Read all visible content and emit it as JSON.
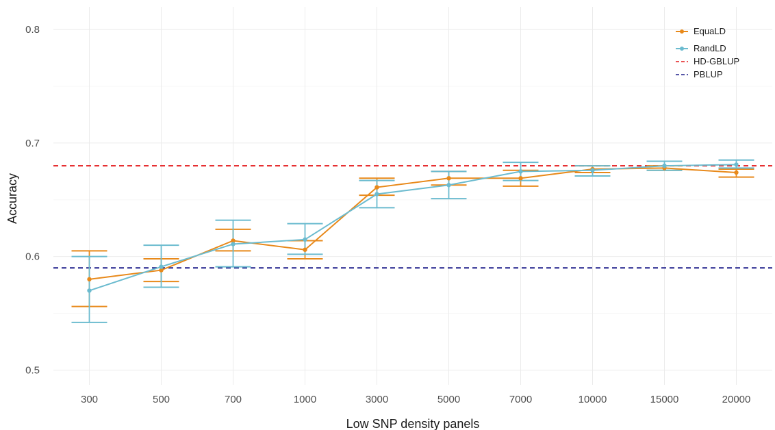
{
  "chart_data": {
    "type": "line",
    "xlabel": "Low SNP density panels",
    "ylabel": "Accuracy",
    "categories": [
      "300",
      "500",
      "700",
      "1000",
      "3000",
      "5000",
      "7000",
      "10000",
      "15000",
      "20000"
    ],
    "ylim": [
      0.487,
      0.82
    ],
    "yticks": [
      0.5,
      0.6,
      0.7,
      0.8
    ],
    "grid": true,
    "legend_position": "top-right",
    "series": [
      {
        "name": "EquaLD",
        "color": "#e8891a",
        "values": [
          0.58,
          0.588,
          0.614,
          0.606,
          0.661,
          0.669,
          0.669,
          0.677,
          0.678,
          0.674
        ],
        "lower": [
          0.556,
          0.578,
          0.605,
          0.598,
          0.654,
          0.663,
          0.662,
          0.674,
          0.676,
          0.67
        ],
        "upper": [
          0.605,
          0.598,
          0.624,
          0.614,
          0.669,
          0.675,
          0.676,
          0.68,
          0.68,
          0.677
        ]
      },
      {
        "name": "RandLD",
        "color": "#6bbbcf",
        "values": [
          0.57,
          0.591,
          0.611,
          0.615,
          0.655,
          0.663,
          0.675,
          0.676,
          0.68,
          0.681
        ],
        "lower": [
          0.542,
          0.573,
          0.591,
          0.602,
          0.643,
          0.651,
          0.667,
          0.671,
          0.676,
          0.678
        ],
        "upper": [
          0.6,
          0.61,
          0.632,
          0.629,
          0.667,
          0.675,
          0.683,
          0.68,
          0.684,
          0.685
        ]
      }
    ],
    "reference_lines": [
      {
        "name": "HD-GBLUP",
        "value": 0.68,
        "color": "#e41a1c",
        "dash": true
      },
      {
        "name": "PBLUP",
        "value": 0.59,
        "color": "#1f1f8a",
        "dash": true
      }
    ]
  }
}
